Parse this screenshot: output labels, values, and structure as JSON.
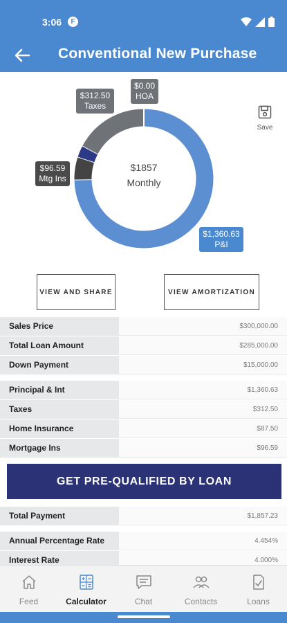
{
  "status": {
    "time": "3:06",
    "fb": "F"
  },
  "header": {
    "title": "Conventional New Purchase"
  },
  "chart": {
    "center_amount": "$1857",
    "center_label": "Monthly",
    "segments": [
      {
        "name": "P&I",
        "value": 1360.63,
        "color": "#5b8fd1"
      },
      {
        "name": "Mtg Ins",
        "value": 96.59,
        "color": "#444444"
      },
      {
        "name": "Taxes-mark",
        "value": 50,
        "color": "#2c3a86"
      },
      {
        "name": "Taxes",
        "value": 312.5,
        "color": "#6f7378"
      },
      {
        "name": "HOA",
        "value": 0,
        "color": "#6f7378"
      }
    ],
    "labels": {
      "hoa": {
        "amount": "$0.00",
        "name": "HOA"
      },
      "taxes": {
        "amount": "$312.50",
        "name": "Taxes"
      },
      "mtg": {
        "amount": "$96.59",
        "name": "Mtg Ins"
      },
      "pi": {
        "amount": "$1,360.63",
        "name": "P&I"
      }
    }
  },
  "save": {
    "label": "Save"
  },
  "buttons": {
    "view_share": "VIEW AND SHARE",
    "view_amort": "VIEW AMORTIZATION"
  },
  "summary1": [
    {
      "label": "Sales Price",
      "value": "$300,000.00"
    },
    {
      "label": "Total Loan Amount",
      "value": "$285,000.00"
    },
    {
      "label": "Down Payment",
      "value": "$15,000.00"
    }
  ],
  "summary2": [
    {
      "label": "Principal & Int",
      "value": "$1,360.63"
    },
    {
      "label": "Taxes",
      "value": "$312.50"
    },
    {
      "label": "Home Insurance",
      "value": "$87.50"
    },
    {
      "label": "Mortgage Ins",
      "value": "$96.59"
    }
  ],
  "cta": {
    "label": "GET PRE-QUALIFIED BY LOAN"
  },
  "total": [
    {
      "label": "Total Payment",
      "value": "$1,857.23"
    }
  ],
  "rates": [
    {
      "label": "Annual Percentage Rate",
      "value": "4.454%"
    },
    {
      "label": "Interest Rate",
      "value": "4.000%"
    }
  ],
  "nav": [
    {
      "label": "Feed",
      "icon": "home-icon"
    },
    {
      "label": "Calculator",
      "icon": "calculator-icon"
    },
    {
      "label": "Chat",
      "icon": "chat-icon"
    },
    {
      "label": "Contacts",
      "icon": "contacts-icon"
    },
    {
      "label": "Loans",
      "icon": "loans-icon"
    }
  ]
}
